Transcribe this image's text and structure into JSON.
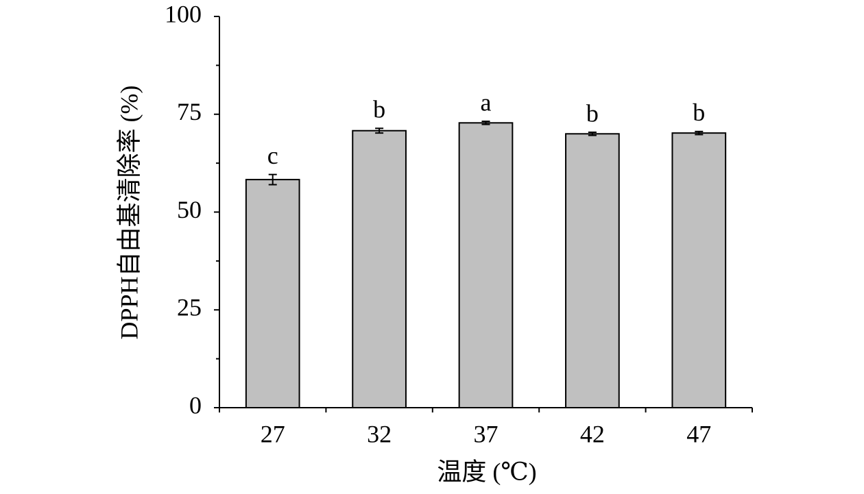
{
  "chart_data": {
    "type": "bar",
    "x_label": "温度 (℃)",
    "y_label": "DPPH自由基清除率 (%)",
    "categories": [
      "27",
      "32",
      "37",
      "42",
      "47"
    ],
    "values": [
      58.3,
      70.8,
      72.8,
      70.0,
      70.2
    ],
    "errors": [
      1.3,
      0.6,
      0.4,
      0.4,
      0.4
    ],
    "significance_letters": [
      "c",
      "b",
      "a",
      "b",
      "b"
    ],
    "color": "#c0c0c0",
    "ylim": [
      0,
      100
    ],
    "yticks": [
      0,
      25,
      50,
      75,
      100
    ]
  }
}
